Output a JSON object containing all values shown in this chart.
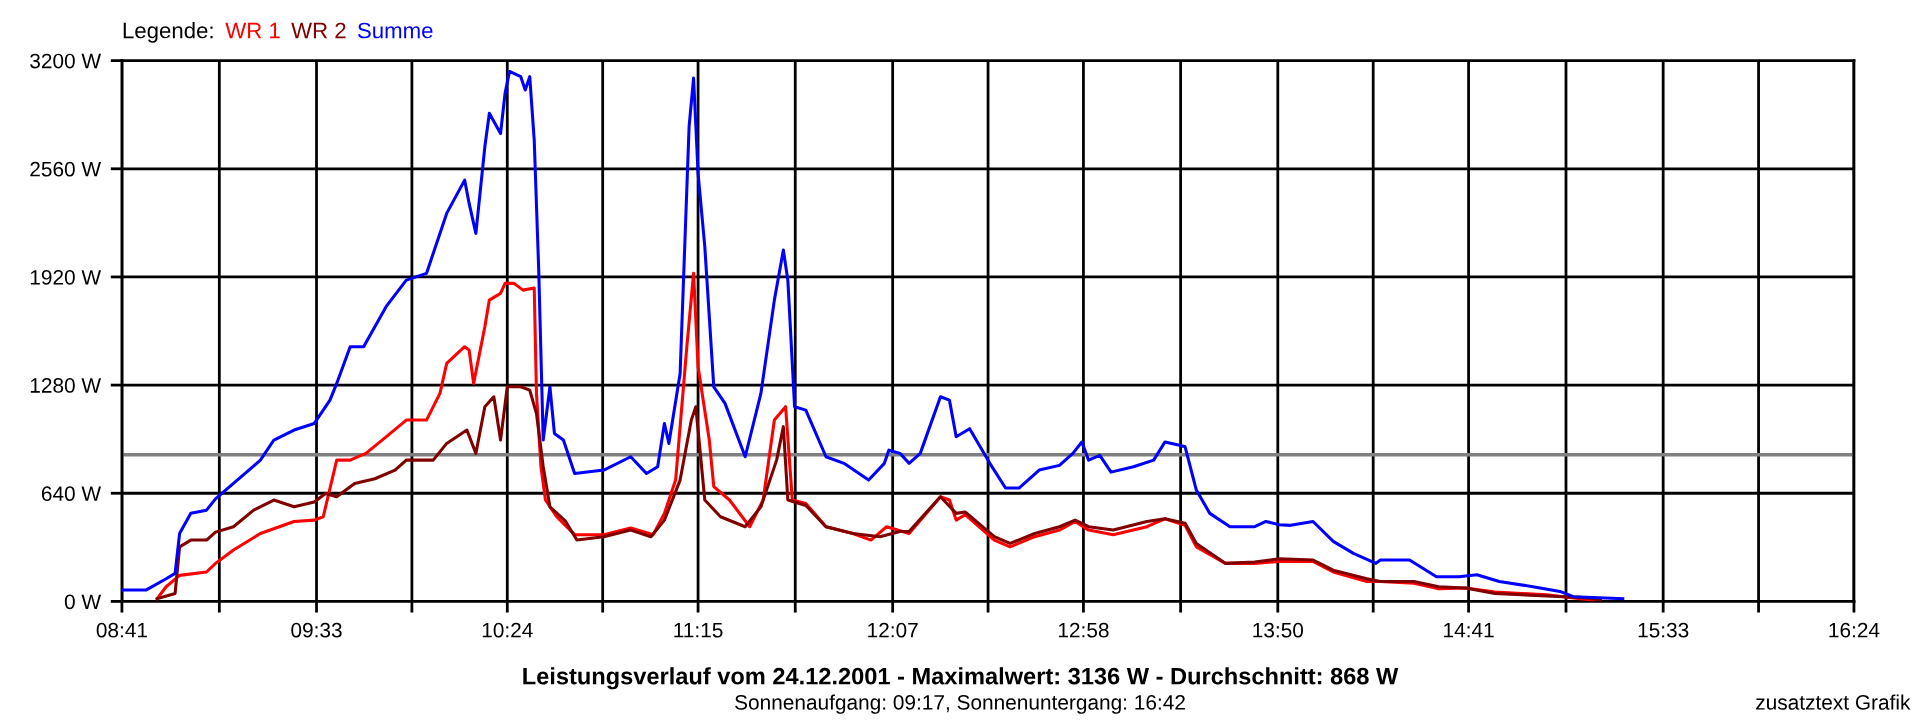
{
  "chart_data": {
    "type": "line",
    "title": "Leistungsverlauf vom 24.12.2001 - Maximalwert: 3136 W - Durchschnitt: 868 W",
    "subtitle": "Sonnenaufgang: 09:17, Sonnenuntergang: 16:42",
    "legend_title": "Legende:",
    "annotations": [
      "zusatztext Grafik"
    ],
    "legend": "top left",
    "grid": true,
    "line_style": "solid",
    "marker": "none",
    "xlim": [
      8.683,
      16.4
    ],
    "ylim": [
      0,
      3200
    ],
    "xticks": [
      {
        "value": 8.683,
        "label": "08:41"
      },
      {
        "value": 9.117,
        "label": null
      },
      {
        "value": 9.55,
        "label": "09:33"
      },
      {
        "value": 9.975,
        "label": null
      },
      {
        "value": 10.4,
        "label": "10:24"
      },
      {
        "value": 10.825,
        "label": null
      },
      {
        "value": 11.25,
        "label": "11:15"
      },
      {
        "value": 11.683,
        "label": null
      },
      {
        "value": 12.117,
        "label": "12:07"
      },
      {
        "value": 12.542,
        "label": null
      },
      {
        "value": 12.967,
        "label": "12:58"
      },
      {
        "value": 13.4,
        "label": null
      },
      {
        "value": 13.833,
        "label": "13:50"
      },
      {
        "value": 14.258,
        "label": null
      },
      {
        "value": 14.683,
        "label": "14:41"
      },
      {
        "value": 15.117,
        "label": null
      },
      {
        "value": 15.55,
        "label": "15:33"
      },
      {
        "value": 15.975,
        "label": null
      },
      {
        "value": 16.4,
        "label": "16:24"
      }
    ],
    "yticks": [
      {
        "value": 0,
        "label": "0 W"
      },
      {
        "value": 640,
        "label": "640 W"
      },
      {
        "value": 1280,
        "label": "1280 W"
      },
      {
        "value": 1920,
        "label": "1920 W"
      },
      {
        "value": 2560,
        "label": "2560 W"
      },
      {
        "value": 3200,
        "label": "3200 W"
      }
    ],
    "ref_lines": [
      {
        "axis": "y",
        "value": 868,
        "color": "#808080"
      }
    ],
    "series": [
      {
        "name": "WR 1",
        "color": "#ff0000",
        "x": [
          8.84,
          8.88,
          8.94,
          9.06,
          9.1,
          9.18,
          9.3,
          9.45,
          9.54,
          9.58,
          9.64,
          9.7,
          9.77,
          9.86,
          9.95,
          10.04,
          10.1,
          10.13,
          10.21,
          10.23,
          10.25,
          10.3,
          10.32,
          10.37,
          10.39,
          10.43,
          10.47,
          10.52,
          10.53,
          10.55,
          10.57,
          10.62,
          10.7,
          10.83,
          10.95,
          11.05,
          11.1,
          11.15,
          11.2,
          11.23,
          11.25,
          11.3,
          11.32,
          11.39,
          11.48,
          11.54,
          11.59,
          11.64,
          11.67,
          11.73,
          11.82,
          11.94,
          12.02,
          12.09,
          12.19,
          12.33,
          12.37,
          12.4,
          12.44,
          12.57,
          12.64,
          12.75,
          12.86,
          12.93,
          12.99,
          13.1,
          13.25,
          13.33,
          13.42,
          13.47,
          13.6,
          13.73,
          13.84,
          13.99,
          14.08,
          14.23,
          14.29,
          14.44,
          14.55,
          14.67,
          14.8,
          15.03,
          15.18,
          15.24
        ],
        "values": [
          16,
          87,
          154,
          174,
          225,
          304,
          402,
          473,
          481,
          501,
          836,
          836,
          876,
          974,
          1073,
          1073,
          1231,
          1408,
          1507,
          1487,
          1290,
          1625,
          1783,
          1823,
          1882,
          1882,
          1842,
          1854,
          1231,
          797,
          600,
          501,
          395,
          395,
          434,
          395,
          521,
          718,
          1507,
          1941,
          1389,
          955,
          679,
          600,
          442,
          600,
          1073,
          1152,
          600,
          580,
          442,
          402,
          363,
          442,
          402,
          619,
          600,
          481,
          513,
          363,
          323,
          383,
          422,
          473,
          422,
          395,
          442,
          489,
          450,
          323,
          225,
          225,
          237,
          237,
          174,
          118,
          118,
          107,
          75,
          79,
          55,
          39,
          16,
          8
        ]
      },
      {
        "name": "WR 2",
        "color": "#800000",
        "x": [
          8.84,
          8.92,
          8.94,
          8.99,
          9.06,
          9.1,
          9.18,
          9.27,
          9.36,
          9.45,
          9.54,
          9.59,
          9.64,
          9.72,
          9.81,
          9.9,
          9.95,
          10.07,
          10.13,
          10.22,
          10.26,
          10.3,
          10.34,
          10.37,
          10.4,
          10.46,
          10.5,
          10.53,
          10.56,
          10.59,
          10.66,
          10.71,
          10.83,
          10.95,
          11.04,
          11.1,
          11.17,
          11.22,
          11.24,
          11.28,
          11.35,
          11.46,
          11.53,
          11.6,
          11.63,
          11.65,
          11.73,
          11.82,
          11.94,
          12.06,
          12.15,
          12.19,
          12.33,
          12.4,
          12.44,
          12.57,
          12.64,
          12.75,
          12.86,
          12.93,
          12.99,
          13.1,
          13.25,
          13.33,
          13.42,
          13.47,
          13.6,
          13.73,
          13.84,
          13.99,
          14.08,
          14.23,
          14.29,
          14.44,
          14.55,
          14.67,
          14.8,
          15.03,
          15.18,
          15.27
        ],
        "values": [
          16,
          47,
          323,
          363,
          363,
          410,
          442,
          540,
          600,
          560,
          588,
          639,
          619,
          698,
          726,
          777,
          836,
          836,
          935,
          1014,
          876,
          1152,
          1211,
          955,
          1270,
          1270,
          1250,
          1112,
          797,
          560,
          473,
          363,
          383,
          422,
          383,
          481,
          718,
          1073,
          1152,
          600,
          501,
          442,
          560,
          836,
          1034,
          600,
          568,
          442,
          402,
          383,
          414,
          414,
          619,
          521,
          529,
          383,
          343,
          402,
          442,
          481,
          442,
          422,
          473,
          489,
          462,
          343,
          225,
          233,
          253,
          245,
          185,
          134,
          118,
          118,
          87,
          79,
          47,
          32,
          24,
          8
        ]
      },
      {
        "name": "Summe",
        "color": "#0000ff",
        "x": [
          8.69,
          8.79,
          8.88,
          8.92,
          8.94,
          8.99,
          9.06,
          9.1,
          9.18,
          9.3,
          9.36,
          9.45,
          9.54,
          9.61,
          9.64,
          9.7,
          9.76,
          9.86,
          9.95,
          10.04,
          10.13,
          10.21,
          10.23,
          10.26,
          10.3,
          10.32,
          10.37,
          10.39,
          10.41,
          10.46,
          10.48,
          10.5,
          10.52,
          10.54,
          10.56,
          10.59,
          10.61,
          10.65,
          10.7,
          10.83,
          10.95,
          11.02,
          11.07,
          11.1,
          11.12,
          11.17,
          11.21,
          11.23,
          11.25,
          11.28,
          11.32,
          11.37,
          11.46,
          11.53,
          11.59,
          11.63,
          11.65,
          11.68,
          11.73,
          11.82,
          11.9,
          12.01,
          12.08,
          12.1,
          12.15,
          12.19,
          12.24,
          12.33,
          12.37,
          12.4,
          12.46,
          12.55,
          12.62,
          12.68,
          12.77,
          12.86,
          12.92,
          12.96,
          12.99,
          13.04,
          13.09,
          13.19,
          13.28,
          13.33,
          13.4,
          13.42,
          13.47,
          13.53,
          13.62,
          13.73,
          13.78,
          13.84,
          13.89,
          13.99,
          14.08,
          14.17,
          14.27,
          14.29,
          14.42,
          14.54,
          14.64,
          14.72,
          14.82,
          14.97,
          15.09,
          15.15,
          15.37
        ],
        "values": [
          67,
          67,
          134,
          166,
          402,
          521,
          540,
          607,
          698,
          836,
          955,
          1014,
          1053,
          1191,
          1290,
          1507,
          1507,
          1744,
          1901,
          1941,
          2296,
          2493,
          2355,
          2178,
          2690,
          2888,
          2769,
          3006,
          3136,
          3105,
          3026,
          3105,
          2730,
          1961,
          955,
          1270,
          994,
          955,
          757,
          777,
          856,
          757,
          797,
          1053,
          935,
          1349,
          2809,
          3097,
          2533,
          2099,
          1270,
          1172,
          856,
          1231,
          1783,
          2079,
          1901,
          1152,
          1132,
          856,
          817,
          718,
          817,
          895,
          876,
          817,
          876,
          1211,
          1191,
          974,
          1022,
          817,
          671,
          671,
          777,
          805,
          876,
          943,
          836,
          864,
          765,
          797,
          836,
          943,
          923,
          915,
          659,
          521,
          442,
          442,
          473,
          454,
          450,
          473,
          355,
          284,
          225,
          245,
          245,
          146,
          146,
          158,
          118,
          87,
          59,
          28,
          16
        ]
      }
    ]
  }
}
